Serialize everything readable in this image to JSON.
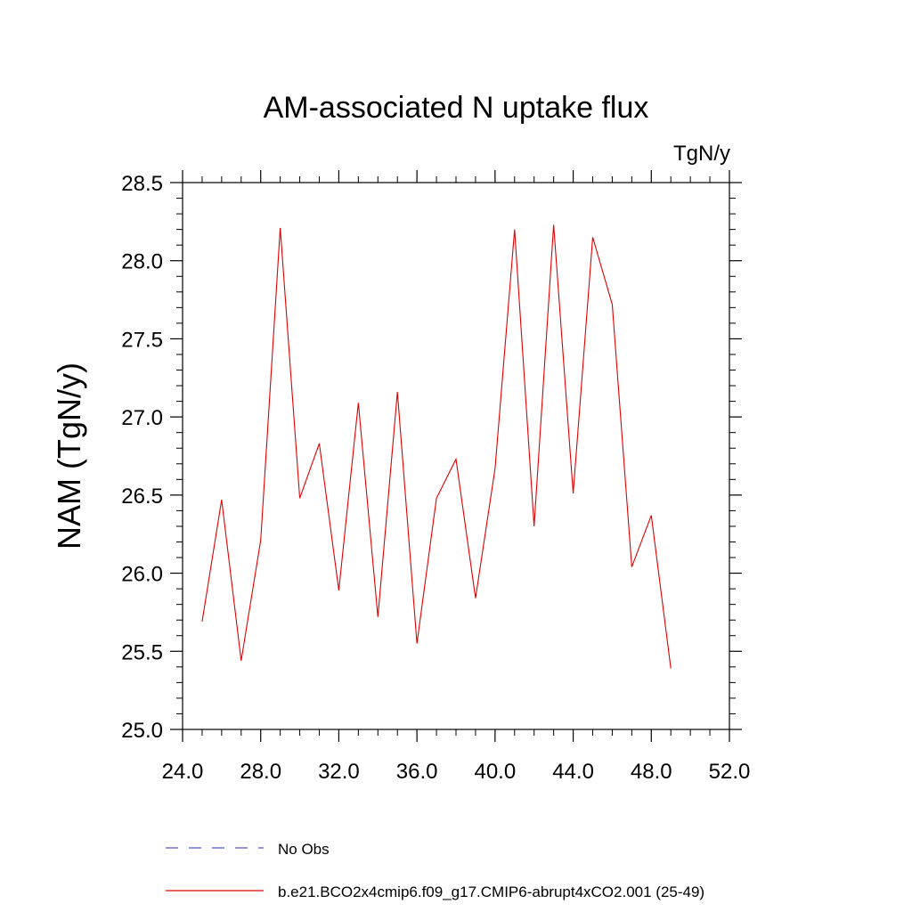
{
  "chart_data": {
    "type": "line",
    "title": "AM-associated N uptake flux",
    "units": "TgN/y",
    "ylabel": "NAM  (TgN/y)",
    "xlabel": "",
    "xlim": [
      24.0,
      52.0
    ],
    "ylim": [
      25.0,
      28.5
    ],
    "xticks": [
      24.0,
      28.0,
      32.0,
      36.0,
      40.0,
      44.0,
      48.0,
      52.0
    ],
    "yticks": [
      25.0,
      25.5,
      26.0,
      26.5,
      27.0,
      27.5,
      28.0,
      28.5
    ],
    "xtick_labels": [
      "24.0",
      "28.0",
      "32.0",
      "36.0",
      "40.0",
      "44.0",
      "48.0",
      "52.0"
    ],
    "ytick_labels": [
      "25.0",
      "25.5",
      "26.0",
      "26.5",
      "27.0",
      "27.5",
      "28.0",
      "28.5"
    ],
    "grid": false,
    "series": [
      {
        "name": "b.e21.BCO2x4cmip6.f09_g17.CMIP6-abrupt4xCO2.001 (25-49)",
        "color": "#e00000",
        "x": [
          25,
          26,
          27,
          28,
          29,
          30,
          31,
          32,
          33,
          34,
          35,
          36,
          37,
          38,
          39,
          40,
          41,
          42,
          43,
          44,
          45,
          46,
          47,
          48,
          49
        ],
        "y": [
          25.69,
          26.47,
          25.44,
          26.21,
          28.21,
          26.48,
          26.83,
          25.89,
          27.09,
          25.72,
          27.16,
          25.55,
          26.48,
          26.73,
          25.84,
          26.67,
          28.2,
          26.3,
          28.23,
          26.51,
          28.15,
          27.72,
          26.04,
          26.37,
          25.39
        ]
      }
    ],
    "legend": {
      "position": "bottom",
      "entries": [
        {
          "label": "No Obs",
          "color": "#5555cc",
          "style": "dashed"
        },
        {
          "label": "b.e21.BCO2x4cmip6.f09_g17.CMIP6-abrupt4xCO2.001 (25-49)",
          "color": "#e00000",
          "style": "solid"
        }
      ]
    }
  }
}
